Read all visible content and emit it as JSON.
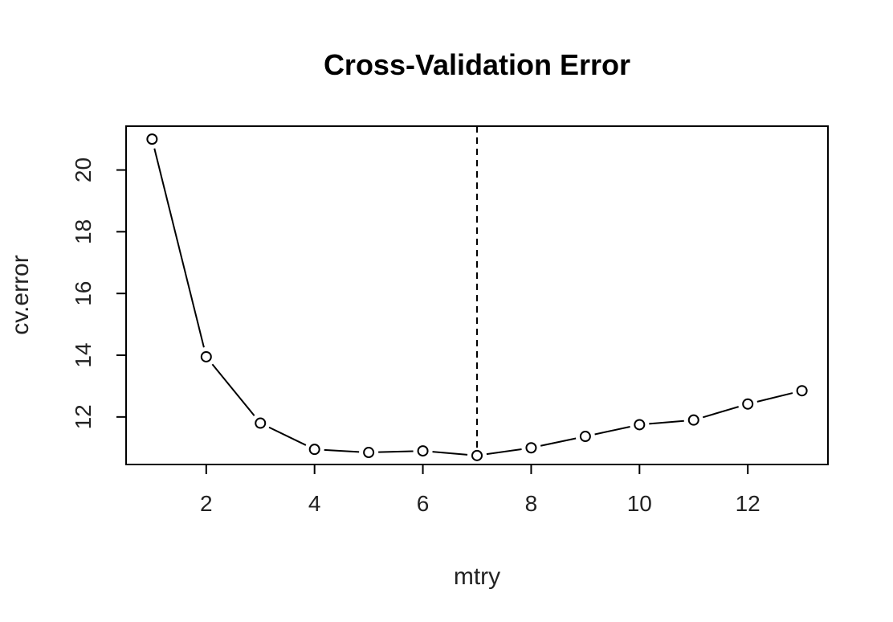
{
  "chart_data": {
    "type": "line",
    "title": "Cross-Validation Error",
    "xlabel": "mtry",
    "ylabel": "cv.error",
    "x": [
      1,
      2,
      3,
      4,
      5,
      6,
      7,
      8,
      9,
      10,
      11,
      12,
      13
    ],
    "series": [
      {
        "values": [
          21.0,
          13.95,
          11.8,
          10.95,
          10.85,
          10.9,
          10.75,
          11.0,
          11.37,
          11.75,
          11.9,
          12.42,
          12.85
        ]
      }
    ],
    "xlim": [
      0.52,
      13.48
    ],
    "ylim": [
      10.46,
      21.42
    ],
    "xticks": [
      2,
      4,
      6,
      8,
      10,
      12
    ],
    "yticks": [
      12,
      14,
      16,
      18,
      20
    ],
    "reference_line": {
      "orientation": "vertical",
      "x": 7,
      "style": "dashed"
    },
    "markers": "open-circle",
    "grid": false,
    "line_color": "#000000"
  }
}
